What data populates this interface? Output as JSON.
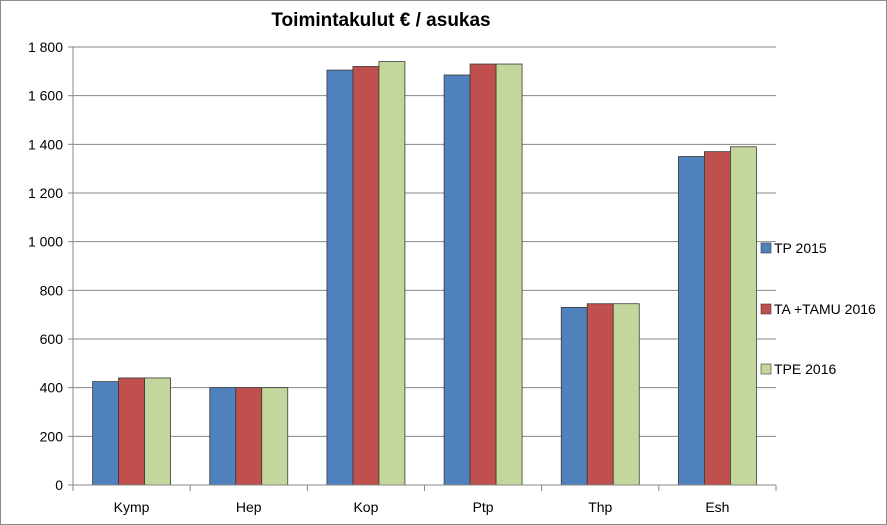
{
  "chart_data": {
    "type": "bar",
    "title": "Toimintakulut  € / asukas",
    "xlabel": "",
    "ylabel": "",
    "categories": [
      "Kymp",
      "Hep",
      "Kop",
      "Ptp",
      "Thp",
      "Esh"
    ],
    "series": [
      {
        "name": "TP 2015",
        "color": "#4f81bd",
        "values": [
          425,
          400,
          1705,
          1685,
          730,
          1350
        ]
      },
      {
        "name": "TA +TAMU 2016",
        "color": "#c0504d",
        "values": [
          440,
          400,
          1720,
          1730,
          745,
          1370
        ]
      },
      {
        "name": "TPE 2016",
        "color": "#c3d69b",
        "values": [
          440,
          400,
          1740,
          1730,
          745,
          1390
        ]
      }
    ],
    "ylim": [
      0,
      1800
    ],
    "yticks": [
      0,
      200,
      400,
      600,
      800,
      1000,
      1200,
      1400,
      1600,
      1800
    ],
    "ytick_labels": [
      "0",
      "200",
      "400",
      "600",
      "800",
      "1 000",
      "1 200",
      "1 400",
      "1 600",
      "1 800"
    ],
    "grid": true,
    "legend_position": "right"
  }
}
